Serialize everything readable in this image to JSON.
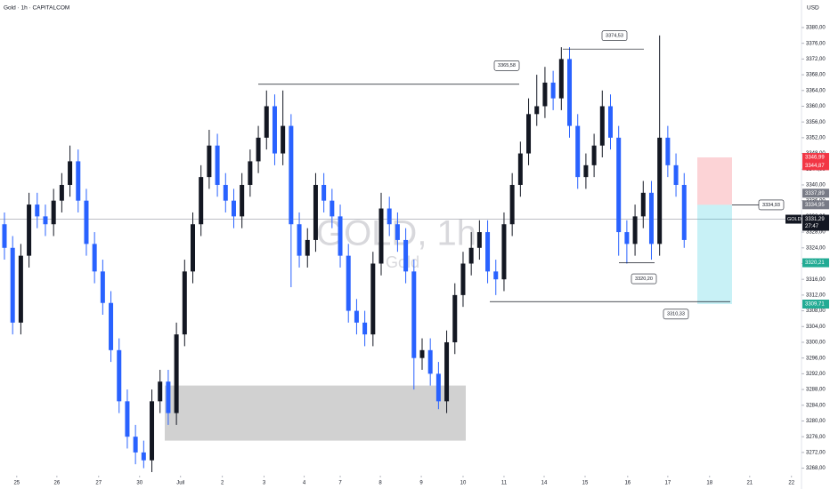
{
  "chart_data": {
    "type": "candlestick",
    "title": "Gold · 1h · CAPITALCOM",
    "watermark": "GOLD, 1h",
    "watermark_sub": "Gold",
    "currency": "USD",
    "symbol": "GOLD",
    "countdown": "27:47",
    "colors": {
      "up": "#131722",
      "down": "#2962ff"
    },
    "open": [
      3330,
      3324,
      3305,
      3322,
      3335,
      3332,
      3330,
      3336,
      3340,
      3346,
      3336,
      3325,
      3318,
      3310,
      3298,
      3285,
      3276,
      3272,
      3270,
      3285,
      3290,
      3282,
      3302,
      3318,
      3330,
      3342,
      3350,
      3340,
      3336,
      3332,
      3340,
      3346,
      3352,
      3360,
      3348,
      3355,
      3330,
      3322,
      3326,
      3340,
      3336,
      3332,
      3322,
      3308,
      3305,
      3302,
      3320,
      3334,
      3330,
      3326,
      3318,
      3296,
      3298,
      3292,
      3285,
      3300,
      3312,
      3320,
      3324,
      3328,
      3318,
      3316,
      3330,
      3340,
      3348,
      3358,
      3360,
      3366,
      3362,
      3372,
      3355,
      3342,
      3345,
      3350,
      3360,
      3352,
      3328,
      3325,
      3332,
      3338,
      3325,
      3352,
      3345,
      3340
    ],
    "high": [
      3333,
      3327,
      3325,
      3338,
      3338,
      3335,
      3339,
      3343,
      3350,
      3349,
      3339,
      3328,
      3321,
      3313,
      3301,
      3288,
      3279,
      3275,
      3288,
      3293,
      3293,
      3305,
      3321,
      3333,
      3345,
      3354,
      3353,
      3343,
      3339,
      3343,
      3349,
      3355,
      3364,
      3363,
      3364,
      3358,
      3333,
      3329,
      3343,
      3343,
      3339,
      3335,
      3325,
      3311,
      3308,
      3323,
      3338,
      3337,
      3333,
      3329,
      3321,
      3301,
      3301,
      3295,
      3303,
      3315,
      3323,
      3328,
      3331,
      3331,
      3321,
      3333,
      3343,
      3351,
      3362,
      3368,
      3370,
      3369,
      3375,
      3375,
      3358,
      3348,
      3353,
      3364,
      3363,
      3355,
      3331,
      3335,
      3341,
      3341,
      3378,
      3355,
      3348,
      3343
    ],
    "low": [
      3321,
      3302,
      3302,
      3319,
      3329,
      3327,
      3327,
      3333,
      3337,
      3333,
      3322,
      3315,
      3307,
      3295,
      3282,
      3273,
      3269,
      3268,
      3267,
      3282,
      3279,
      3279,
      3299,
      3315,
      3327,
      3339,
      3337,
      3333,
      3329,
      3329,
      3337,
      3343,
      3349,
      3345,
      3345,
      3314,
      3319,
      3319,
      3323,
      3333,
      3329,
      3319,
      3305,
      3302,
      3299,
      3299,
      3317,
      3327,
      3323,
      3315,
      3288,
      3293,
      3289,
      3283,
      3282,
      3297,
      3309,
      3317,
      3321,
      3315,
      3312,
      3313,
      3327,
      3337,
      3345,
      3355,
      3357,
      3359,
      3359,
      3352,
      3339,
      3339,
      3342,
      3347,
      3349,
      3322,
      3320,
      3322,
      3329,
      3321,
      3322,
      3342,
      3337,
      3324
    ],
    "close": [
      3324,
      3305,
      3322,
      3335,
      3332,
      3330,
      3336,
      3340,
      3346,
      3336,
      3325,
      3318,
      3310,
      3298,
      3285,
      3276,
      3272,
      3270,
      3285,
      3290,
      3282,
      3302,
      3318,
      3330,
      3342,
      3350,
      3340,
      3336,
      3332,
      3340,
      3346,
      3352,
      3360,
      3348,
      3355,
      3330,
      3322,
      3326,
      3340,
      3336,
      3332,
      3322,
      3308,
      3305,
      3302,
      3320,
      3334,
      3330,
      3326,
      3318,
      3296,
      3298,
      3292,
      3285,
      3300,
      3312,
      3320,
      3324,
      3328,
      3318,
      3316,
      3330,
      3340,
      3348,
      3358,
      3360,
      3366,
      3362,
      3372,
      3355,
      3342,
      3345,
      3350,
      3360,
      3352,
      3328,
      3325,
      3332,
      3338,
      3325,
      3352,
      3345,
      3340,
      3326
    ],
    "xlim": [
      0,
      97
    ],
    "xticks": [
      {
        "value": 1.5,
        "label": "25"
      },
      {
        "value": 6.4,
        "label": "26"
      },
      {
        "value": 11.5,
        "label": "27"
      },
      {
        "value": 16.5,
        "label": "30"
      },
      {
        "value": 21.5,
        "label": "Juil"
      },
      {
        "value": 26.6,
        "label": "2"
      },
      {
        "value": 31.7,
        "label": "3"
      },
      {
        "value": 36.6,
        "label": "4"
      },
      {
        "value": 41,
        "label": "7"
      },
      {
        "value": 45.9,
        "label": "8"
      },
      {
        "value": 50.9,
        "label": "9"
      },
      {
        "value": 56,
        "label": "10"
      },
      {
        "value": 61,
        "label": "11"
      },
      {
        "value": 65.9,
        "label": "14"
      },
      {
        "value": 70.9,
        "label": "15"
      },
      {
        "value": 76.1,
        "label": "16"
      },
      {
        "value": 81,
        "label": "17"
      },
      {
        "value": 86.1,
        "label": "18"
      },
      {
        "value": 91,
        "label": "21"
      },
      {
        "value": 96.1,
        "label": "22"
      }
    ],
    "ylim": [
      3267,
      3387
    ],
    "yticks": [
      {
        "value": 3268,
        "label": "3268,00"
      },
      {
        "value": 3272,
        "label": "3272,00"
      },
      {
        "value": 3276,
        "label": "3276,00"
      },
      {
        "value": 3280,
        "label": "3280,00"
      },
      {
        "value": 3284,
        "label": "3284,00"
      },
      {
        "value": 3288,
        "label": "3288,00"
      },
      {
        "value": 3292,
        "label": "3292,00"
      },
      {
        "value": 3296,
        "label": "3296,00"
      },
      {
        "value": 3300,
        "label": "3300,00"
      },
      {
        "value": 3304,
        "label": "3304,00"
      },
      {
        "value": 3308,
        "label": "3308,00"
      },
      {
        "value": 3312,
        "label": "3312,00"
      },
      {
        "value": 3316,
        "label": "3316,00"
      },
      {
        "value": 3320,
        "label": "3320,00"
      },
      {
        "value": 3324,
        "label": "3324,00"
      },
      {
        "value": 3328,
        "label": "3328,00"
      },
      {
        "value": 3332,
        "label": "3332,00"
      },
      {
        "value": 3336,
        "label": "3336,00"
      },
      {
        "value": 3340,
        "label": "3340,00"
      },
      {
        "value": 3344,
        "label": "3344,00"
      },
      {
        "value": 3348,
        "label": "3348,00"
      },
      {
        "value": 3352,
        "label": "3352,00"
      },
      {
        "value": 3356,
        "label": "3356,00"
      },
      {
        "value": 3360,
        "label": "3360,00"
      },
      {
        "value": 3364,
        "label": "3364,00"
      },
      {
        "value": 3368,
        "label": "3368,00"
      },
      {
        "value": 3372,
        "label": "3372,00"
      },
      {
        "value": 3376,
        "label": "3376,00"
      },
      {
        "value": 3380,
        "label": "3380,00"
      }
    ],
    "current_price": {
      "value": 3331.29,
      "label": "3331,29"
    },
    "price_labels": [
      {
        "value": 3346.99,
        "label": "3346,99",
        "color": "#f23645"
      },
      {
        "value": 3344.87,
        "label": "3344,87",
        "color": "#f23645"
      },
      {
        "value": 3337.89,
        "label": "3337,89",
        "color": "#787b86"
      },
      {
        "value": 3334.95,
        "label": "3334,95",
        "color": "#787b86"
      },
      {
        "value": 3320.21,
        "label": "3320,21",
        "color": "#22ab94"
      },
      {
        "value": 3309.71,
        "label": "3309,71",
        "color": "#22ab94"
      }
    ],
    "annotations": [
      {
        "value": 3374.53,
        "label": "3374,53"
      },
      {
        "value": 3365.58,
        "label": "3365,58"
      },
      {
        "value": 3320.2,
        "label": "3320,20"
      },
      {
        "value": 3310.33,
        "label": "3310,33"
      },
      {
        "value": 3334.93,
        "label": "3334,93"
      }
    ],
    "zone": {
      "low": 3275,
      "high": 3289
    },
    "position": {
      "stop": 3346.99,
      "entry": 3334.95,
      "target": 3309.71
    }
  }
}
